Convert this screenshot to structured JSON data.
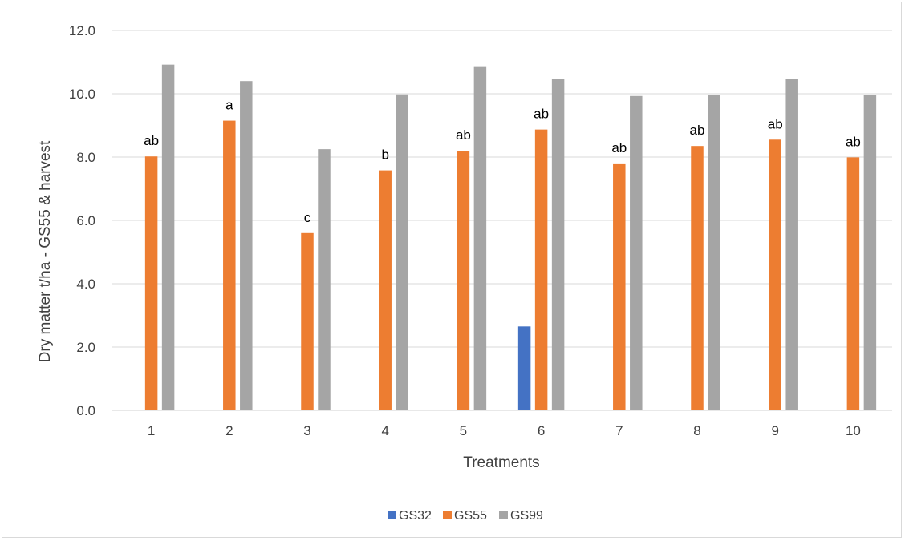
{
  "chart_data": {
    "type": "bar",
    "title": "",
    "xlabel": "Treatments",
    "ylabel": "Dry matter t/ha - GS55 & harvest",
    "ylim": [
      0,
      12
    ],
    "ytick_step": 2,
    "ytick_labels": [
      "0.0",
      "2.0",
      "4.0",
      "6.0",
      "8.0",
      "10.0",
      "12.0"
    ],
    "grid": true,
    "legend_position": "bottom",
    "categories": [
      "1",
      "2",
      "3",
      "4",
      "5",
      "6",
      "7",
      "8",
      "9",
      "10"
    ],
    "series": [
      {
        "name": "GS32",
        "color": "#4472c4",
        "values": [
          null,
          null,
          null,
          null,
          null,
          2.65,
          null,
          null,
          null,
          null
        ]
      },
      {
        "name": "GS55",
        "color": "#ed7d31",
        "values": [
          8.02,
          9.15,
          5.6,
          7.58,
          8.2,
          8.87,
          7.8,
          8.35,
          8.55,
          7.99
        ]
      },
      {
        "name": "GS99",
        "color": "#a5a5a5",
        "values": [
          10.92,
          10.4,
          8.25,
          9.98,
          10.87,
          10.48,
          9.93,
          9.95,
          10.46,
          9.95
        ]
      }
    ],
    "annotations": {
      "series": "GS55",
      "labels": [
        "ab",
        "a",
        "c",
        "b",
        "ab",
        "ab",
        "ab",
        "ab",
        "ab",
        "ab"
      ]
    }
  }
}
